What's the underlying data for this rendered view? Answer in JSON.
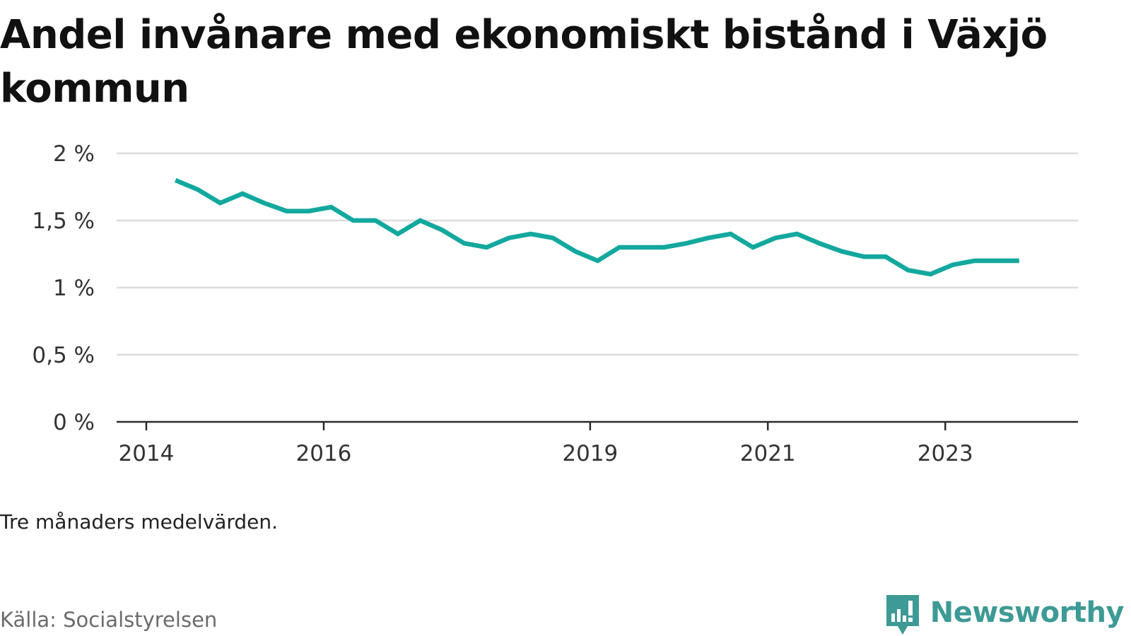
{
  "title": "Andel invånare med ekonomiskt bistånd i Växjö kommun",
  "subtitle": "Tre månaders medelvärden.",
  "source": "Källa: Socialstyrelsen",
  "brand": {
    "name": "Newsworthy",
    "icon": "newsworthy-logo-icon",
    "color": "#3d9a95"
  },
  "chart_data": {
    "type": "line",
    "x_axis": {
      "type": "date",
      "range": [
        "2013-09-01",
        "2024-06-30"
      ],
      "ticks": [
        {
          "value": "2014-01-01",
          "label": "2014"
        },
        {
          "value": "2016-01-01",
          "label": "2016"
        },
        {
          "value": "2019-01-01",
          "label": "2019"
        },
        {
          "value": "2021-01-01",
          "label": "2021"
        },
        {
          "value": "2023-01-01",
          "label": "2023"
        }
      ]
    },
    "y_axis": {
      "range": [
        0,
        2
      ],
      "ticks": [
        {
          "value": 0,
          "label": "0 %"
        },
        {
          "value": 0.5,
          "label": "0,5 %"
        },
        {
          "value": 1,
          "label": "1 %"
        },
        {
          "value": 1.5,
          "label": "1,5 %"
        },
        {
          "value": 2,
          "label": "2 %"
        }
      ]
    },
    "grid": true,
    "legend": "none",
    "series": [
      {
        "color": "#13a89e",
        "points": [
          {
            "x": "2014-05-01",
            "y": 1.8
          },
          {
            "x": "2014-08-01",
            "y": 1.73
          },
          {
            "x": "2014-11-01",
            "y": 1.63
          },
          {
            "x": "2015-02-01",
            "y": 1.7
          },
          {
            "x": "2015-05-01",
            "y": 1.63
          },
          {
            "x": "2015-08-01",
            "y": 1.57
          },
          {
            "x": "2015-11-01",
            "y": 1.57
          },
          {
            "x": "2016-02-01",
            "y": 1.6
          },
          {
            "x": "2016-05-01",
            "y": 1.5
          },
          {
            "x": "2016-08-01",
            "y": 1.5
          },
          {
            "x": "2016-11-01",
            "y": 1.4
          },
          {
            "x": "2017-02-01",
            "y": 1.5
          },
          {
            "x": "2017-05-01",
            "y": 1.43
          },
          {
            "x": "2017-08-01",
            "y": 1.33
          },
          {
            "x": "2017-11-01",
            "y": 1.3
          },
          {
            "x": "2018-02-01",
            "y": 1.37
          },
          {
            "x": "2018-05-01",
            "y": 1.4
          },
          {
            "x": "2018-08-01",
            "y": 1.37
          },
          {
            "x": "2018-11-01",
            "y": 1.27
          },
          {
            "x": "2019-02-01",
            "y": 1.2
          },
          {
            "x": "2019-05-01",
            "y": 1.3
          },
          {
            "x": "2019-08-01",
            "y": 1.3
          },
          {
            "x": "2019-11-01",
            "y": 1.3
          },
          {
            "x": "2020-02-01",
            "y": 1.33
          },
          {
            "x": "2020-05-01",
            "y": 1.37
          },
          {
            "x": "2020-08-01",
            "y": 1.4
          },
          {
            "x": "2020-11-01",
            "y": 1.3
          },
          {
            "x": "2021-02-01",
            "y": 1.37
          },
          {
            "x": "2021-05-01",
            "y": 1.4
          },
          {
            "x": "2021-08-01",
            "y": 1.33
          },
          {
            "x": "2021-11-01",
            "y": 1.27
          },
          {
            "x": "2022-02-01",
            "y": 1.23
          },
          {
            "x": "2022-05-01",
            "y": 1.23
          },
          {
            "x": "2022-08-01",
            "y": 1.13
          },
          {
            "x": "2022-11-01",
            "y": 1.1
          },
          {
            "x": "2023-02-01",
            "y": 1.17
          },
          {
            "x": "2023-05-01",
            "y": 1.2
          },
          {
            "x": "2023-08-01",
            "y": 1.2
          },
          {
            "x": "2023-11-01",
            "y": 1.2
          }
        ]
      }
    ]
  }
}
